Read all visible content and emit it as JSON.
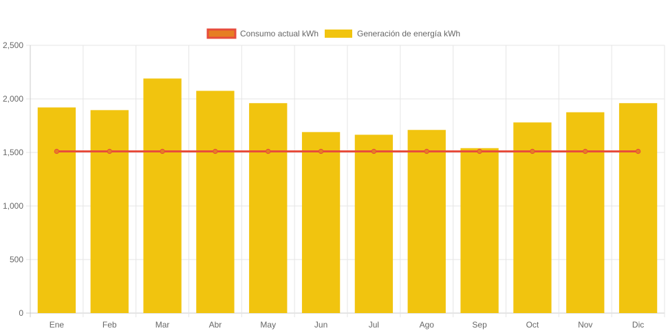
{
  "chart_data": {
    "type": "bar",
    "categories": [
      "Ene",
      "Feb",
      "Mar",
      "Abr",
      "May",
      "Jun",
      "Jul",
      "Ago",
      "Sep",
      "Oct",
      "Nov",
      "Dic"
    ],
    "series": [
      {
        "name": "Consumo actual kWh",
        "kind": "line",
        "values": [
          1510,
          1510,
          1510,
          1510,
          1510,
          1510,
          1510,
          1510,
          1510,
          1510,
          1510,
          1510
        ],
        "color": "#e74c3c",
        "fill": "#e67e22"
      },
      {
        "name": "Generación de energía kWh",
        "kind": "bar",
        "values": [
          1920,
          1895,
          2190,
          2075,
          1960,
          1690,
          1665,
          1710,
          1540,
          1780,
          1875,
          1960
        ],
        "color": "#f1c40f"
      }
    ],
    "yticks": [
      "0",
      "500",
      "1,000",
      "1,500",
      "2,000",
      "2,500"
    ],
    "ylim": [
      0,
      2500
    ],
    "grid": true,
    "legend_position": "top"
  }
}
